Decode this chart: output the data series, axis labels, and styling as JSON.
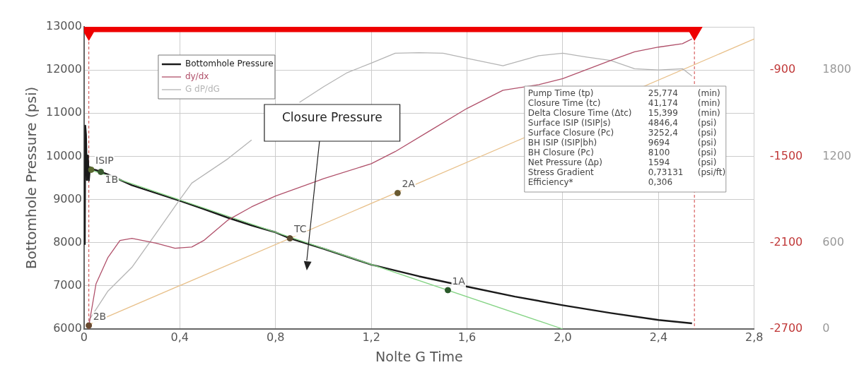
{
  "chart_data": {
    "type": "line",
    "xlabel": "Nolte G Time",
    "ylabel": "Bottomhole Pressure (psi)",
    "xlim": [
      0,
      2.8
    ],
    "xticks": [
      0,
      {
        "value": 0.4,
        "label": "0,4"
      },
      {
        "value": 0.8,
        "label": "0,8"
      },
      {
        "value": 1.2,
        "label": "1,2"
      },
      {
        "value": 1.6,
        "label": "1,6"
      },
      {
        "value": 2.0,
        "label": "2,0"
      },
      {
        "value": 2.4,
        "label": "2,4"
      },
      {
        "value": 2.8,
        "label": "2,8"
      }
    ],
    "ylim": [
      6000,
      13000
    ],
    "yticks": [
      6000,
      7000,
      8000,
      9000,
      10000,
      11000,
      12000,
      13000
    ],
    "y2lim": [
      -2700,
      -600
    ],
    "y2ticks": [
      -2700,
      -2100,
      -1500,
      -900
    ],
    "y3lim": [
      0,
      2100
    ],
    "y3ticks": [
      0,
      600,
      1200,
      1800
    ],
    "grid": true,
    "legend": "top left",
    "series": [
      {
        "name": "Bottomhole Pressure",
        "color": "#1a1a1a",
        "x": [
          0.003,
          0.005,
          0.008,
          0.012,
          0.016,
          0.02,
          0.025,
          0.035,
          0.05,
          0.1,
          0.2,
          0.3,
          0.4,
          0.5,
          0.6,
          0.7,
          0.8,
          0.86,
          1.0,
          1.2,
          1.4,
          1.6,
          1.8,
          2.0,
          2.2,
          2.4,
          2.54
        ],
        "values": [
          7950,
          10710,
          10500,
          9450,
          10020,
          9440,
          9750,
          9700,
          9680,
          9580,
          9330,
          9150,
          8970,
          8780,
          8580,
          8400,
          8240,
          8100,
          7860,
          7490,
          7220,
          6980,
          6750,
          6550,
          6370,
          6210,
          6130
        ]
      },
      {
        "name": "dy/dx",
        "color": "#b0506a",
        "axis": "y2",
        "x": [
          0.02,
          0.05,
          0.1,
          0.15,
          0.2,
          0.3,
          0.38,
          0.45,
          0.5,
          0.6,
          0.7,
          0.8,
          1.0,
          1.2,
          1.3,
          1.45,
          1.6,
          1.75,
          1.9,
          2.0,
          2.2,
          2.3,
          2.4,
          2.5,
          2.54
        ],
        "values": [
          -2677,
          -2386,
          -2202,
          -2085,
          -2070,
          -2103,
          -2139,
          -2130,
          -2085,
          -1944,
          -1851,
          -1776,
          -1656,
          -1551,
          -1467,
          -1317,
          -1167,
          -1041,
          -1002,
          -960,
          -834,
          -774,
          -741,
          -717,
          -684
        ]
      },
      {
        "name": "G dP/dG",
        "color": "#b4b4b4",
        "axis": "y3",
        "x": [
          0.02,
          0.1,
          0.2,
          0.3,
          0.4,
          0.45,
          0.6,
          0.7,
          0.8,
          0.9,
          1.0,
          1.1,
          1.2,
          1.3,
          1.4,
          1.5,
          1.6,
          1.75,
          1.9,
          2.0,
          2.1,
          2.2,
          2.3,
          2.4,
          2.5,
          2.54
        ],
        "values": [
          60,
          264,
          429,
          663,
          900,
          1014,
          1182,
          1314,
          null,
          1575,
          1683,
          1782,
          1848,
          1917,
          1920,
          1917,
          1881,
          1830,
          1899,
          1917,
          1890,
          1866,
          1809,
          1800,
          1809,
          1758
        ]
      },
      {
        "color": "#86d486",
        "x": [
          0.02,
          2.0
        ],
        "values": [
          9700,
          6000
        ]
      },
      {
        "color": "#e8c08a",
        "x": [
          0.02,
          2.8
        ],
        "values": [
          6100,
          12720
        ]
      },
      {
        "color": "#ee0000",
        "marker": "triangle",
        "x": [
          0.02,
          2.55
        ],
        "values": [
          12950,
          12950
        ]
      },
      {
        "type": "scatter",
        "marker": "circle",
        "colors": [
          "#6a4a30",
          "#5a6a30",
          "#3a5a30",
          "#5a4a30",
          "#6a5a30",
          "#2a5a2a"
        ],
        "x": [
          0.02,
          0.03,
          0.07,
          0.86,
          1.31,
          1.52
        ],
        "values": [
          6080,
          9690,
          9640,
          8100,
          9150,
          6900
        ]
      }
    ],
    "ref_lines": [
      {
        "axis": "x",
        "value": 0.02,
        "color": "#d04040",
        "line_style": "dashed"
      },
      {
        "axis": "x",
        "value": 2.55,
        "color": "#d04040",
        "line_style": "dashed"
      }
    ],
    "annotations": [
      "Closure Pressure",
      {
        "text": "2B",
        "x": 0.02,
        "y": 6080
      },
      {
        "text": "ISIP",
        "x": 0.03,
        "y": 9690
      },
      {
        "text": "1B",
        "x": 0.07,
        "y": 9640
      },
      {
        "text": "TC",
        "x": 0.86,
        "y": 8100
      },
      {
        "text": "2A",
        "x": 1.31,
        "y": 9150
      },
      {
        "text": "1A",
        "x": 1.52,
        "y": 6900
      },
      "Pump Time (tp)",
      "25,774",
      "(min)",
      "Closure Time (tc)",
      "41,174",
      "(min)",
      "Delta Closure Time (Δtc)",
      "15,399",
      "(min)",
      "Surface ISIP (ISIP|s)",
      "4846,4",
      "(psi)",
      "Surface Closure (Pc)",
      "3252,4",
      "(psi)",
      "BH ISIP (ISIP|bh)",
      "9694",
      "(psi)",
      "BH Closure (Pc)",
      "8100",
      "(psi)",
      "Net Pressure (Δp)",
      "1594",
      "(psi)",
      "Stress Gradient",
      "0,73131",
      "(psi/ft)",
      "Efficiency*",
      "0,306"
    ]
  }
}
